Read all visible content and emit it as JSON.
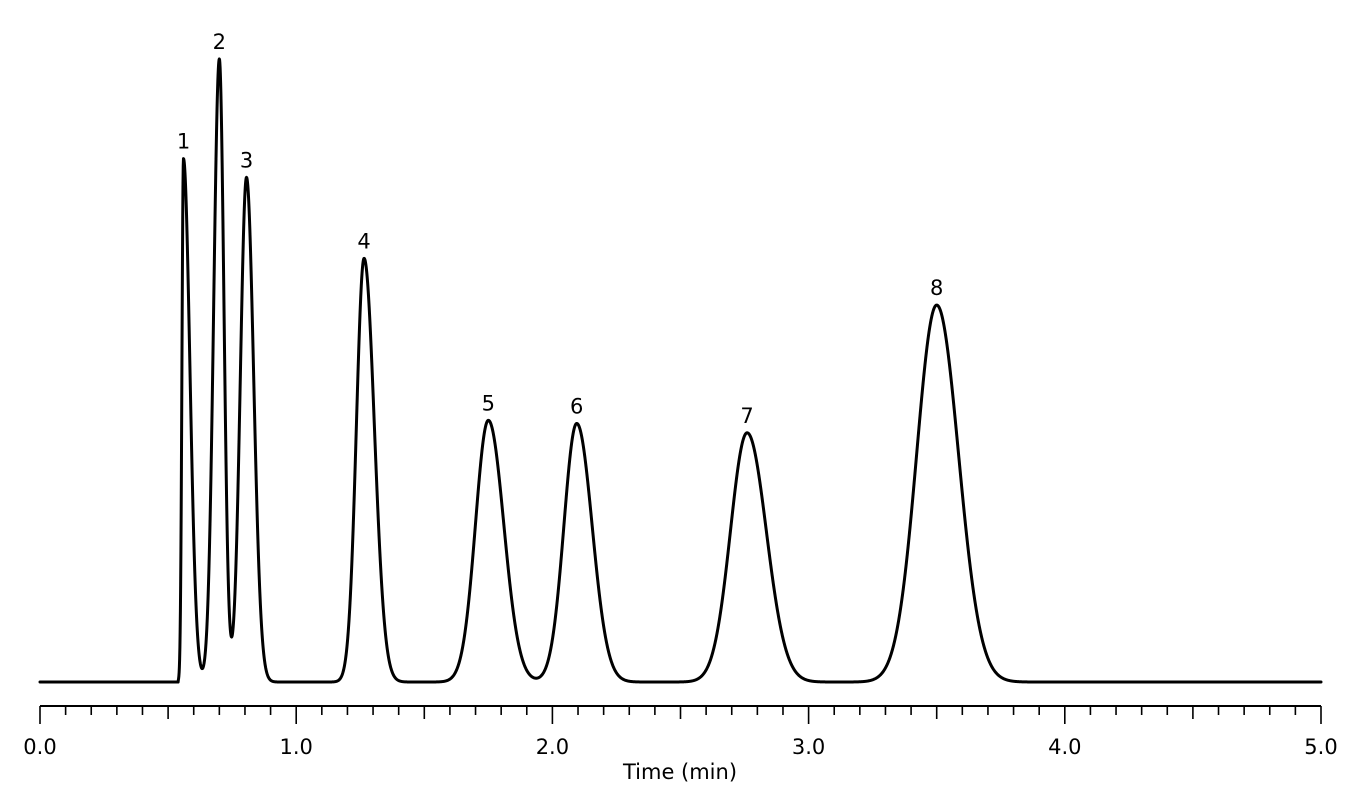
{
  "chart_data": {
    "type": "line",
    "title": "",
    "xlabel": "Time (min)",
    "ylabel": "",
    "xlim": [
      0,
      5
    ],
    "ylim": [
      0,
      100
    ],
    "x_ticks": [
      "0.0",
      "1.0",
      "2.0",
      "3.0",
      "4.0",
      "5.0"
    ],
    "minor_tick_step": 0.1,
    "grid": false,
    "legend": "none",
    "line_color": "#000000",
    "peaks": [
      {
        "label": "1",
        "time": 0.56,
        "height": 84.0
      },
      {
        "label": "2",
        "time": 0.7,
        "height": 100.0
      },
      {
        "label": "3",
        "time": 0.806,
        "height": 81.0
      },
      {
        "label": "4",
        "time": 1.265,
        "height": 68.0
      },
      {
        "label": "5",
        "time": 1.75,
        "height": 42.0
      },
      {
        "label": "6",
        "time": 2.095,
        "height": 41.5
      },
      {
        "label": "7",
        "time": 2.76,
        "height": 40.0
      },
      {
        "label": "8",
        "time": 3.5,
        "height": 60.5
      }
    ]
  }
}
